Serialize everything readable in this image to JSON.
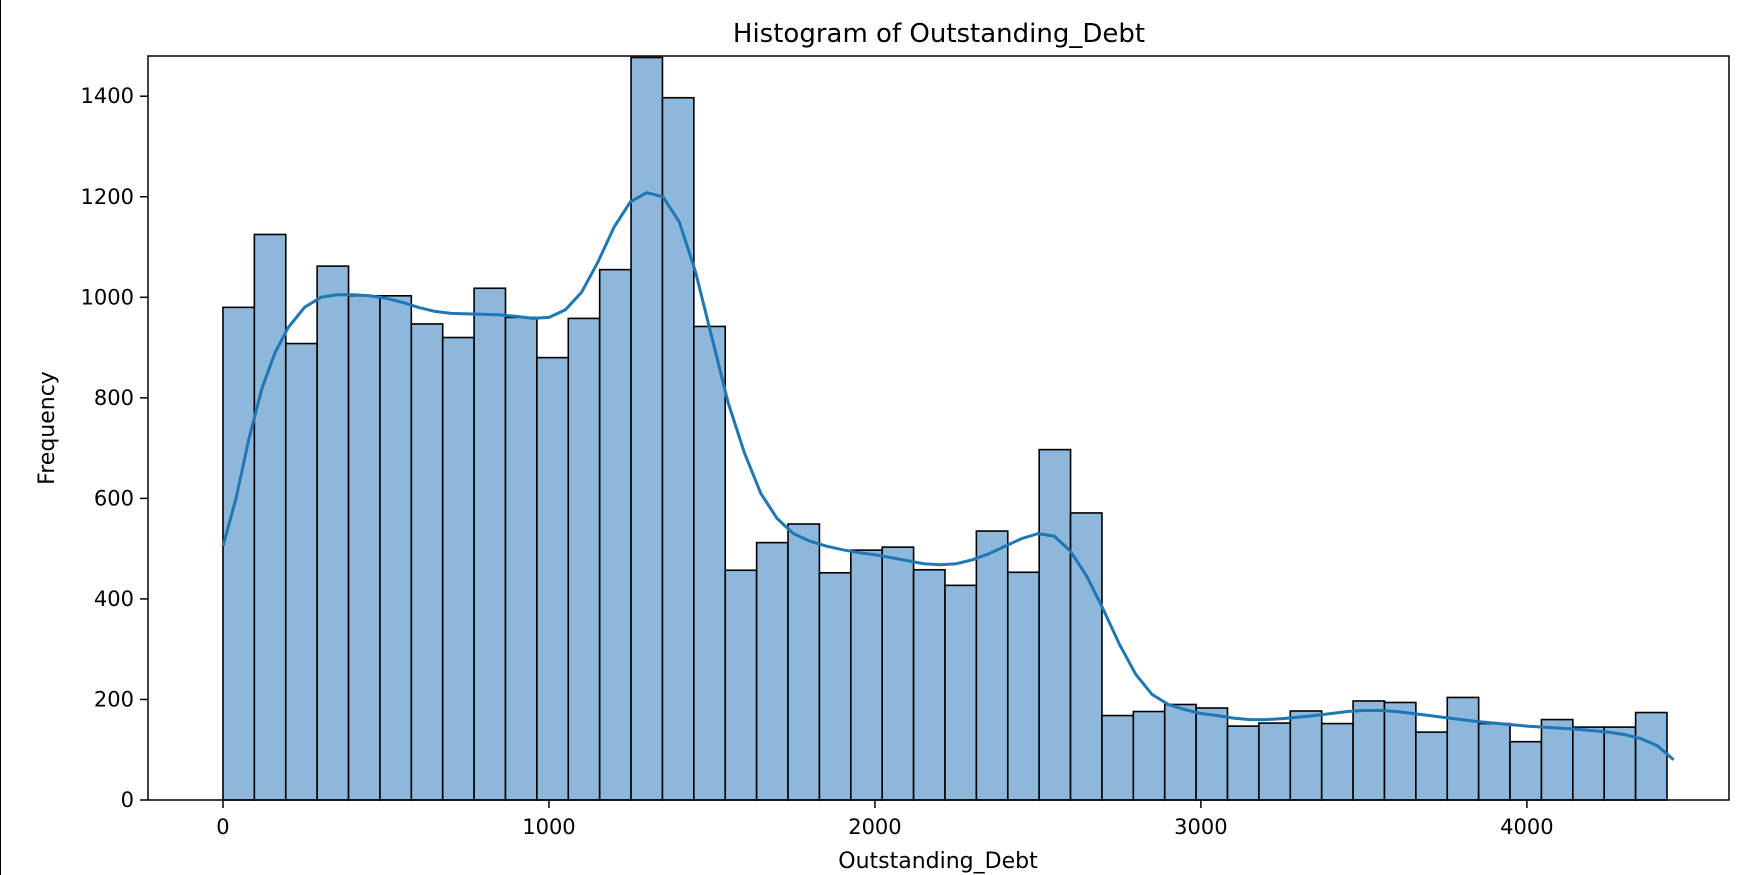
{
  "chart_data": {
    "type": "bar",
    "title": "Histogram of Outstanding_Debt",
    "xlabel": "Outstanding_Debt",
    "ylabel": "Frequency",
    "xlim": [
      -230,
      4620
    ],
    "ylim": [
      0,
      1480
    ],
    "x_ticks": [
      0,
      1000,
      2000,
      3000,
      4000
    ],
    "y_ticks": [
      0,
      200,
      400,
      600,
      800,
      1000,
      1200,
      1400
    ],
    "grid": false,
    "legend": "none",
    "bin_start": 0,
    "bin_width": 96.3,
    "values": [
      980,
      1125,
      908,
      1062,
      1003,
      1003,
      947,
      920,
      1018,
      960,
      880,
      958,
      1055,
      1477,
      1397,
      942,
      457,
      512,
      549,
      452,
      497,
      503,
      458,
      427,
      535,
      453,
      697,
      571,
      168,
      176,
      190,
      183,
      147,
      153,
      177,
      152,
      197,
      194,
      135,
      204,
      152,
      116,
      160,
      145,
      145,
      174
    ],
    "kde": {
      "x": [
        0,
        40,
        80,
        120,
        160,
        200,
        250,
        300,
        350,
        400,
        450,
        500,
        550,
        600,
        650,
        700,
        750,
        800,
        850,
        900,
        950,
        1000,
        1050,
        1100,
        1150,
        1200,
        1250,
        1300,
        1350,
        1400,
        1450,
        1500,
        1550,
        1600,
        1650,
        1700,
        1750,
        1800,
        1850,
        1900,
        1950,
        2000,
        2050,
        2100,
        2150,
        2200,
        2250,
        2300,
        2350,
        2400,
        2450,
        2500,
        2550,
        2600,
        2650,
        2700,
        2750,
        2800,
        2850,
        2900,
        2950,
        3000,
        3050,
        3100,
        3150,
        3200,
        3250,
        3300,
        3350,
        3400,
        3450,
        3500,
        3550,
        3600,
        3650,
        3700,
        3750,
        3800,
        3850,
        3900,
        3950,
        4000,
        4050,
        4100,
        4150,
        4200,
        4250,
        4300,
        4350,
        4400,
        4450
      ],
      "y": [
        505,
        600,
        720,
        820,
        890,
        940,
        980,
        1000,
        1005,
        1005,
        1003,
        998,
        990,
        980,
        972,
        968,
        967,
        966,
        965,
        962,
        958,
        960,
        975,
        1010,
        1070,
        1140,
        1190,
        1208,
        1200,
        1150,
        1050,
        920,
        790,
        690,
        610,
        560,
        530,
        515,
        505,
        498,
        492,
        488,
        482,
        476,
        470,
        468,
        470,
        478,
        490,
        505,
        520,
        530,
        525,
        495,
        445,
        380,
        310,
        250,
        210,
        190,
        180,
        172,
        168,
        163,
        160,
        160,
        162,
        165,
        168,
        172,
        176,
        178,
        178,
        176,
        172,
        168,
        164,
        160,
        156,
        153,
        150,
        147,
        145,
        143,
        141,
        138,
        135,
        130,
        122,
        108,
        80
      ]
    },
    "colors": {
      "bar_fill": "#8db7db",
      "bar_edge": "#000000",
      "kde_line": "#1f77b4"
    }
  }
}
